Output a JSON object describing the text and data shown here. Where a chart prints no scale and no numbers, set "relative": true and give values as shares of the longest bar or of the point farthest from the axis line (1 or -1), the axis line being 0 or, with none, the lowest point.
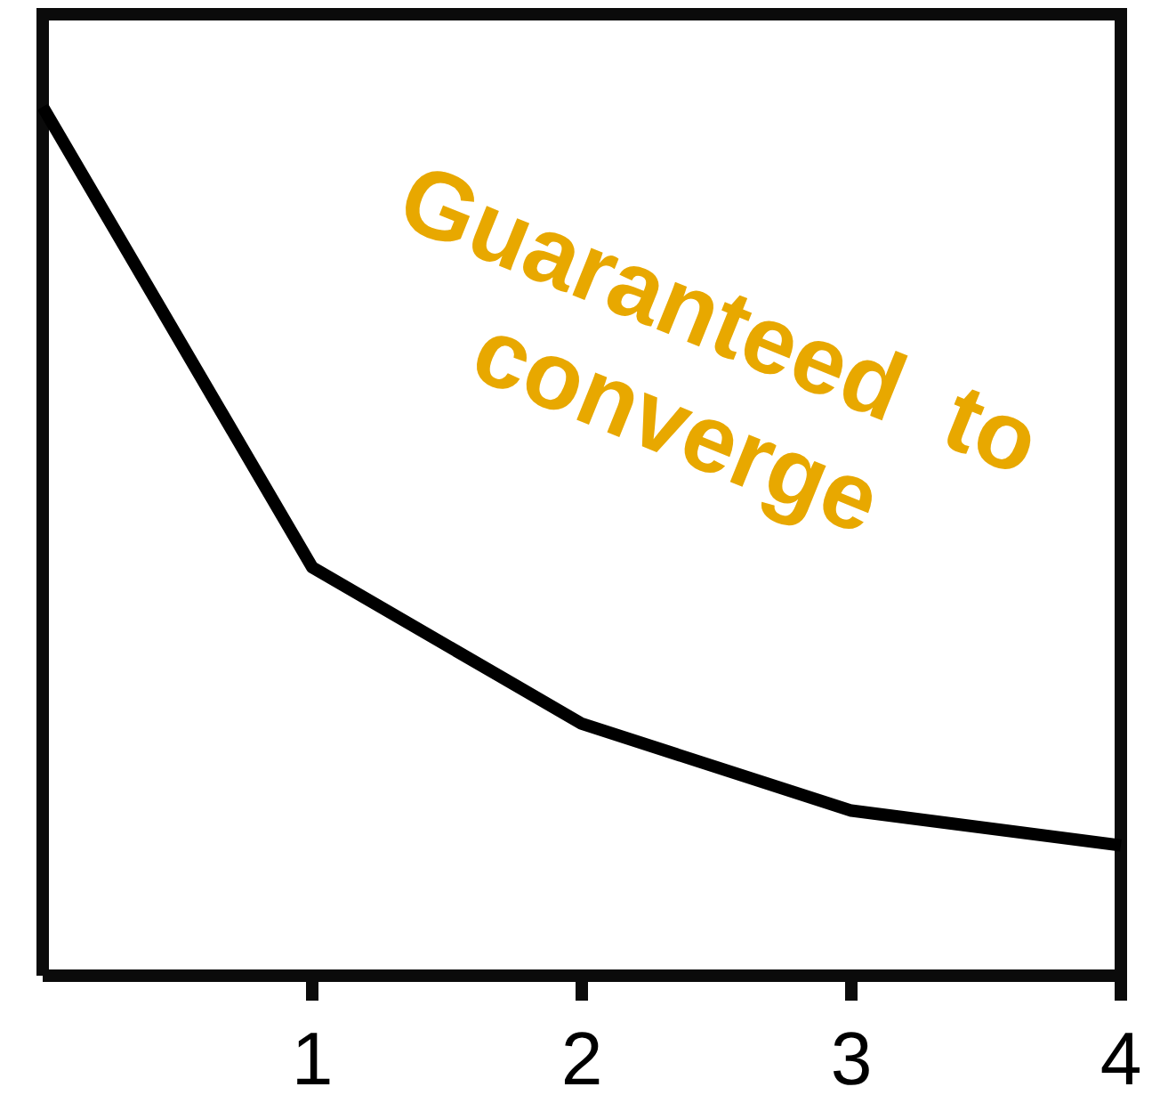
{
  "chart_data": {
    "type": "line",
    "relative": true,
    "x": [
      0,
      1,
      2,
      3,
      4
    ],
    "series": [
      {
        "color": "#000000",
        "values": [
          1,
          0.47,
          0.29,
          0.19,
          0.15
        ]
      }
    ],
    "xlim": [
      0,
      4
    ],
    "xticks": [
      1,
      2,
      3,
      4
    ],
    "annotations": [
      "Guaranteed  to\nconverge"
    ],
    "grid": false,
    "marker": "none",
    "line_style": "solid"
  }
}
